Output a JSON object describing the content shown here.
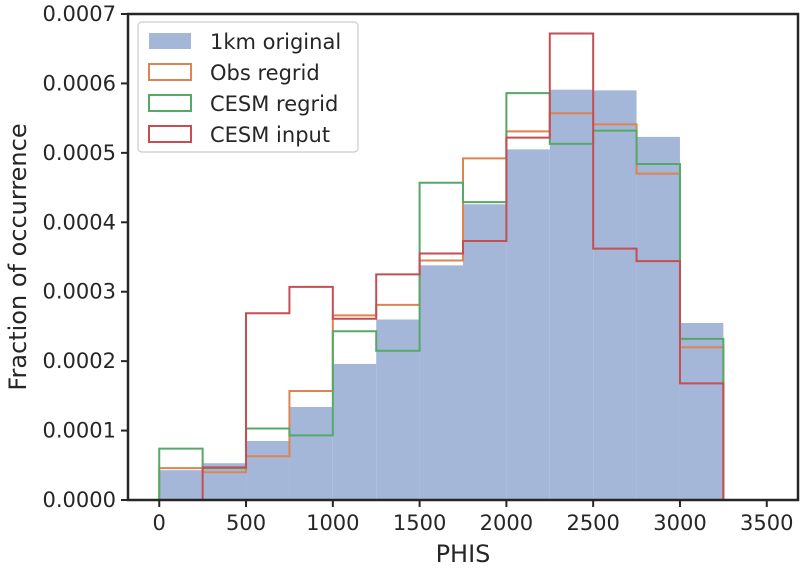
{
  "chart_data": {
    "type": "histogram",
    "xlabel": "PHIS",
    "ylabel": "Fraction of occurrence",
    "xlim": [
      -180,
      3680
    ],
    "ylim": [
      0,
      0.0007
    ],
    "x_ticks": [
      "0",
      "500",
      "1000",
      "1500",
      "2000",
      "2500",
      "3000",
      "3500"
    ],
    "y_ticks": [
      "0.0000",
      "0.0001",
      "0.0002",
      "0.0003",
      "0.0004",
      "0.0005",
      "0.0006",
      "0.0007"
    ],
    "bin_edges": [
      0,
      250,
      500,
      750,
      1000,
      1250,
      1500,
      1750,
      2000,
      2250,
      2500,
      2750,
      3000,
      3250
    ],
    "legend_position": "upper-left",
    "series": [
      {
        "name": "1km original",
        "style": "filled",
        "color": "#a5b7d8",
        "values": [
          4.3e-05,
          5.3e-05,
          8.5e-05,
          0.000134,
          0.000196,
          0.00026,
          0.000338,
          0.000426,
          0.000505,
          0.000591,
          0.00059,
          0.000523,
          0.000255
        ]
      },
      {
        "name": "Obs regrid",
        "style": "step",
        "color": "#dd8452",
        "values": [
          4.6e-05,
          4e-05,
          6.3e-05,
          0.000157,
          0.000266,
          0.000281,
          0.000345,
          0.000492,
          0.000531,
          0.000557,
          0.000541,
          0.00047,
          0.00022
        ]
      },
      {
        "name": "CESM regrid",
        "style": "step",
        "color": "#55a868",
        "values": [
          7.4e-05,
          4.6e-05,
          0.000103,
          9.3e-05,
          0.000243,
          0.000215,
          0.000457,
          0.000429,
          0.000586,
          0.000513,
          0.000532,
          0.000484,
          0.000232
        ]
      },
      {
        "name": "CESM input",
        "style": "step",
        "color": "#c44e52",
        "values": [
          0,
          4.7e-05,
          0.000269,
          0.000307,
          0.000261,
          0.000325,
          0.000355,
          0.000373,
          0.000522,
          0.000672,
          0.000362,
          0.000344,
          0.000168
        ]
      }
    ]
  }
}
